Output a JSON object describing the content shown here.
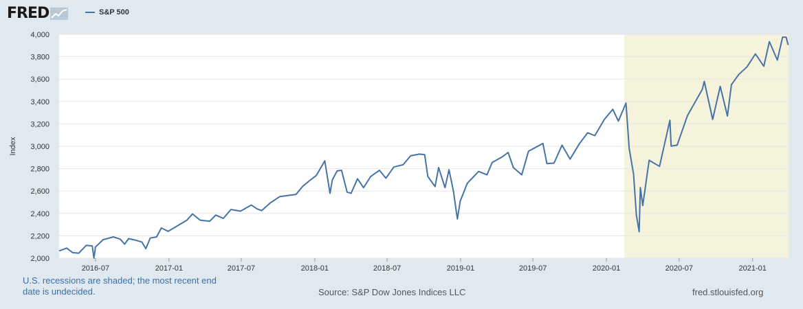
{
  "brand": {
    "logo_text": "FRED"
  },
  "chart_data": {
    "type": "line",
    "series": [
      {
        "name": "S&P 500",
        "color": "#4572a7",
        "points": [
          [
            "2016-04-01",
            2065
          ],
          [
            "2016-04-20",
            2090
          ],
          [
            "2016-05-05",
            2050
          ],
          [
            "2016-05-20",
            2045
          ],
          [
            "2016-06-08",
            2115
          ],
          [
            "2016-06-23",
            2110
          ],
          [
            "2016-06-27",
            2000
          ],
          [
            "2016-07-01",
            2100
          ],
          [
            "2016-07-20",
            2165
          ],
          [
            "2016-08-15",
            2190
          ],
          [
            "2016-09-01",
            2170
          ],
          [
            "2016-09-12",
            2125
          ],
          [
            "2016-09-22",
            2175
          ],
          [
            "2016-10-10",
            2160
          ],
          [
            "2016-10-25",
            2145
          ],
          [
            "2016-11-04",
            2085
          ],
          [
            "2016-11-15",
            2180
          ],
          [
            "2016-12-01",
            2190
          ],
          [
            "2016-12-13",
            2270
          ],
          [
            "2016-12-30",
            2240
          ],
          [
            "2017-01-25",
            2295
          ],
          [
            "2017-02-15",
            2340
          ],
          [
            "2017-03-01",
            2395
          ],
          [
            "2017-03-20",
            2340
          ],
          [
            "2017-04-13",
            2330
          ],
          [
            "2017-04-28",
            2385
          ],
          [
            "2017-05-17",
            2355
          ],
          [
            "2017-06-05",
            2435
          ],
          [
            "2017-06-29",
            2420
          ],
          [
            "2017-07-26",
            2475
          ],
          [
            "2017-08-10",
            2440
          ],
          [
            "2017-08-21",
            2425
          ],
          [
            "2017-09-12",
            2495
          ],
          [
            "2017-10-05",
            2550
          ],
          [
            "2017-10-25",
            2560
          ],
          [
            "2017-11-15",
            2570
          ],
          [
            "2017-12-01",
            2640
          ],
          [
            "2017-12-18",
            2690
          ],
          [
            "2018-01-05",
            2740
          ],
          [
            "2018-01-26",
            2870
          ],
          [
            "2018-02-08",
            2580
          ],
          [
            "2018-02-14",
            2700
          ],
          [
            "2018-02-26",
            2780
          ],
          [
            "2018-03-09",
            2785
          ],
          [
            "2018-03-23",
            2590
          ],
          [
            "2018-04-02",
            2580
          ],
          [
            "2018-04-18",
            2710
          ],
          [
            "2018-05-03",
            2630
          ],
          [
            "2018-05-21",
            2730
          ],
          [
            "2018-06-12",
            2785
          ],
          [
            "2018-06-28",
            2715
          ],
          [
            "2018-07-18",
            2815
          ],
          [
            "2018-08-10",
            2835
          ],
          [
            "2018-08-29",
            2915
          ],
          [
            "2018-09-20",
            2930
          ],
          [
            "2018-10-03",
            2925
          ],
          [
            "2018-10-11",
            2730
          ],
          [
            "2018-10-29",
            2640
          ],
          [
            "2018-11-07",
            2810
          ],
          [
            "2018-11-23",
            2630
          ],
          [
            "2018-12-03",
            2790
          ],
          [
            "2018-12-14",
            2600
          ],
          [
            "2018-12-24",
            2350
          ],
          [
            "2018-12-31",
            2510
          ],
          [
            "2019-01-18",
            2670
          ],
          [
            "2019-02-15",
            2775
          ],
          [
            "2019-03-08",
            2745
          ],
          [
            "2019-03-21",
            2855
          ],
          [
            "2019-04-15",
            2905
          ],
          [
            "2019-04-30",
            2945
          ],
          [
            "2019-05-13",
            2810
          ],
          [
            "2019-06-03",
            2745
          ],
          [
            "2019-06-20",
            2955
          ],
          [
            "2019-07-26",
            3025
          ],
          [
            "2019-08-05",
            2845
          ],
          [
            "2019-08-23",
            2850
          ],
          [
            "2019-09-12",
            3010
          ],
          [
            "2019-10-02",
            2885
          ],
          [
            "2019-10-25",
            3020
          ],
          [
            "2019-11-15",
            3120
          ],
          [
            "2019-12-03",
            3095
          ],
          [
            "2019-12-27",
            3240
          ],
          [
            "2020-01-17",
            3330
          ],
          [
            "2020-01-31",
            3225
          ],
          [
            "2020-02-19",
            3386
          ],
          [
            "2020-02-27",
            2980
          ],
          [
            "2020-03-09",
            2750
          ],
          [
            "2020-03-16",
            2386
          ],
          [
            "2020-03-23",
            2237
          ],
          [
            "2020-03-26",
            2630
          ],
          [
            "2020-04-01",
            2470
          ],
          [
            "2020-04-17",
            2875
          ],
          [
            "2020-05-13",
            2820
          ],
          [
            "2020-06-08",
            3232
          ],
          [
            "2020-06-11",
            3002
          ],
          [
            "2020-06-26",
            3010
          ],
          [
            "2020-07-22",
            3275
          ],
          [
            "2020-08-28",
            3508
          ],
          [
            "2020-09-02",
            3580
          ],
          [
            "2020-09-23",
            3240
          ],
          [
            "2020-10-12",
            3535
          ],
          [
            "2020-10-30",
            3270
          ],
          [
            "2020-11-09",
            3550
          ],
          [
            "2020-11-27",
            3640
          ],
          [
            "2020-12-18",
            3710
          ],
          [
            "2021-01-08",
            3825
          ],
          [
            "2021-01-29",
            3715
          ],
          [
            "2021-02-12",
            3935
          ],
          [
            "2021-03-04",
            3770
          ],
          [
            "2021-03-17",
            3975
          ],
          [
            "2021-03-26",
            3975
          ],
          [
            "2021-03-31",
            3905
          ]
        ]
      }
    ],
    "recession_shading": {
      "start": "2020-02-15",
      "end": "2021-04-01",
      "color": "#f5f3db"
    },
    "xlim": [
      "2016-04-01",
      "2021-04-01"
    ],
    "ylim": [
      2000,
      4000
    ],
    "yticks": [
      2000,
      2200,
      2400,
      2600,
      2800,
      3000,
      3200,
      3400,
      3600,
      3800,
      4000
    ],
    "ytick_labels": [
      "2,000",
      "2,200",
      "2,400",
      "2,600",
      "2,800",
      "3,000",
      "3,200",
      "3,400",
      "3,600",
      "3,800",
      "4,000"
    ],
    "xticks": [
      "2016-07-01",
      "2017-01-01",
      "2017-07-01",
      "2018-01-01",
      "2018-07-01",
      "2019-01-01",
      "2019-07-01",
      "2020-01-01",
      "2020-07-01",
      "2021-01-01"
    ],
    "xtick_labels": [
      "2016-07",
      "2017-01",
      "2017-07",
      "2018-01",
      "2018-07",
      "2019-01",
      "2019-07",
      "2020-01",
      "2020-07",
      "2021-01"
    ],
    "ylabel": "Index",
    "grid": true,
    "legend": {
      "position": "top-left",
      "label": "S&P 500"
    }
  },
  "footer": {
    "note": "U.S. recessions are shaded; the most recent end date is undecided.",
    "source": "Source: S&P Dow Jones Indices LLC",
    "site": "fred.stlouisfed.org"
  },
  "colors": {
    "background": "#e1e9f0",
    "plot_bg": "#ffffff",
    "line": "#4572a7",
    "grid": "#e6e6e6"
  }
}
